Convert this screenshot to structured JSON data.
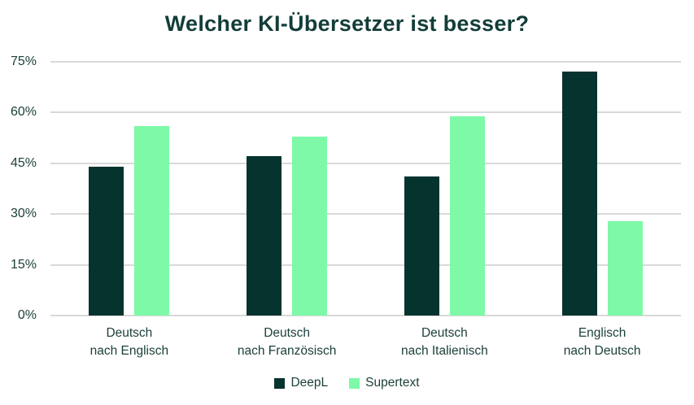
{
  "chart": {
    "title": "Welcher KI-Übersetzer ist besser?"
  },
  "chart_data": {
    "type": "bar",
    "title": "Welcher KI-Übersetzer ist besser?",
    "categories": [
      "Deutsch nach Englisch",
      "Deutsch nach Französisch",
      "Deutsch nach Italienisch",
      "Englisch nach Deutsch"
    ],
    "category_lines": [
      [
        "Deutsch",
        "nach Englisch"
      ],
      [
        "Deutsch",
        "nach Französisch"
      ],
      [
        "Deutsch",
        "nach Italienisch"
      ],
      [
        "Englisch",
        "nach Deutsch"
      ]
    ],
    "series": [
      {
        "name": "DeepL",
        "color": "#05332E",
        "values": [
          44,
          47,
          41,
          72
        ]
      },
      {
        "name": "Supertext",
        "color": "#7DF9A7",
        "values": [
          56,
          53,
          59,
          28
        ]
      }
    ],
    "xlabel": "",
    "ylabel": "",
    "ylim": [
      0,
      75
    ],
    "yticks": [
      0,
      15,
      30,
      45,
      60,
      75
    ],
    "ytick_labels": [
      "0%",
      "15%",
      "30%",
      "45%",
      "60%",
      "75%"
    ],
    "grid": true,
    "legend_position": "bottom",
    "colors": {
      "title_text": "#123D38",
      "axis_text": "#1C403B",
      "gridline": "#D9D9D9",
      "background": "#FFFFFF"
    }
  }
}
